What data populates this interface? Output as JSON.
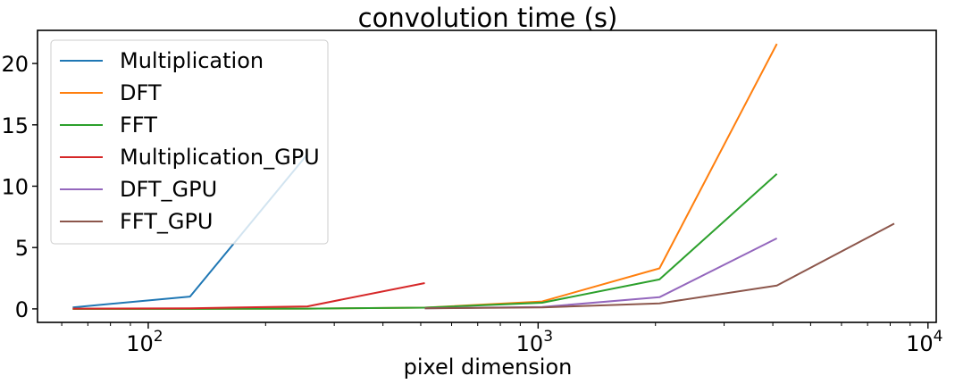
{
  "chart_data": {
    "type": "line",
    "title": "convolution time (s)",
    "xlabel": "pixel dimension",
    "ylabel": "",
    "xscale": "log",
    "xlim": [
      52,
      10500
    ],
    "ylim": [
      -1.1,
      22.7
    ],
    "yticks": [
      0,
      5,
      10,
      15,
      20
    ],
    "xticks": [
      {
        "value": 100,
        "base": "10",
        "exp": "2"
      },
      {
        "value": 1000,
        "base": "10",
        "exp": "3"
      },
      {
        "value": 10000,
        "base": "10",
        "exp": "4"
      }
    ],
    "grid": false,
    "legend_position": "top-left",
    "series": [
      {
        "name": "Multiplication",
        "color": "#1f77b4",
        "x": [
          64,
          128,
          256
        ],
        "y": [
          0.12,
          1.0,
          12.6
        ]
      },
      {
        "name": "DFT",
        "color": "#ff7f0e",
        "x": [
          64,
          128,
          256,
          512,
          1024,
          2048,
          4096
        ],
        "y": [
          0.0,
          0.0,
          0.02,
          0.1,
          0.6,
          3.3,
          21.6
        ]
      },
      {
        "name": "FFT",
        "color": "#2ca02c",
        "x": [
          64,
          128,
          256,
          512,
          1024,
          2048,
          4096
        ],
        "y": [
          0.0,
          0.0,
          0.02,
          0.1,
          0.5,
          2.4,
          11.0
        ]
      },
      {
        "name": "Multiplication_GPU",
        "color": "#d62728",
        "x": [
          64,
          128,
          256,
          512
        ],
        "y": [
          0.02,
          0.05,
          0.2,
          2.1
        ]
      },
      {
        "name": "DFT_GPU",
        "color": "#9467bd",
        "x": [
          512,
          1024,
          2048,
          4096
        ],
        "y": [
          0.05,
          0.15,
          0.95,
          5.75
        ]
      },
      {
        "name": "FFT_GPU",
        "color": "#8c564b",
        "x": [
          512,
          1024,
          2048,
          4096,
          8192
        ],
        "y": [
          0.05,
          0.12,
          0.45,
          1.9,
          6.95
        ]
      }
    ]
  }
}
